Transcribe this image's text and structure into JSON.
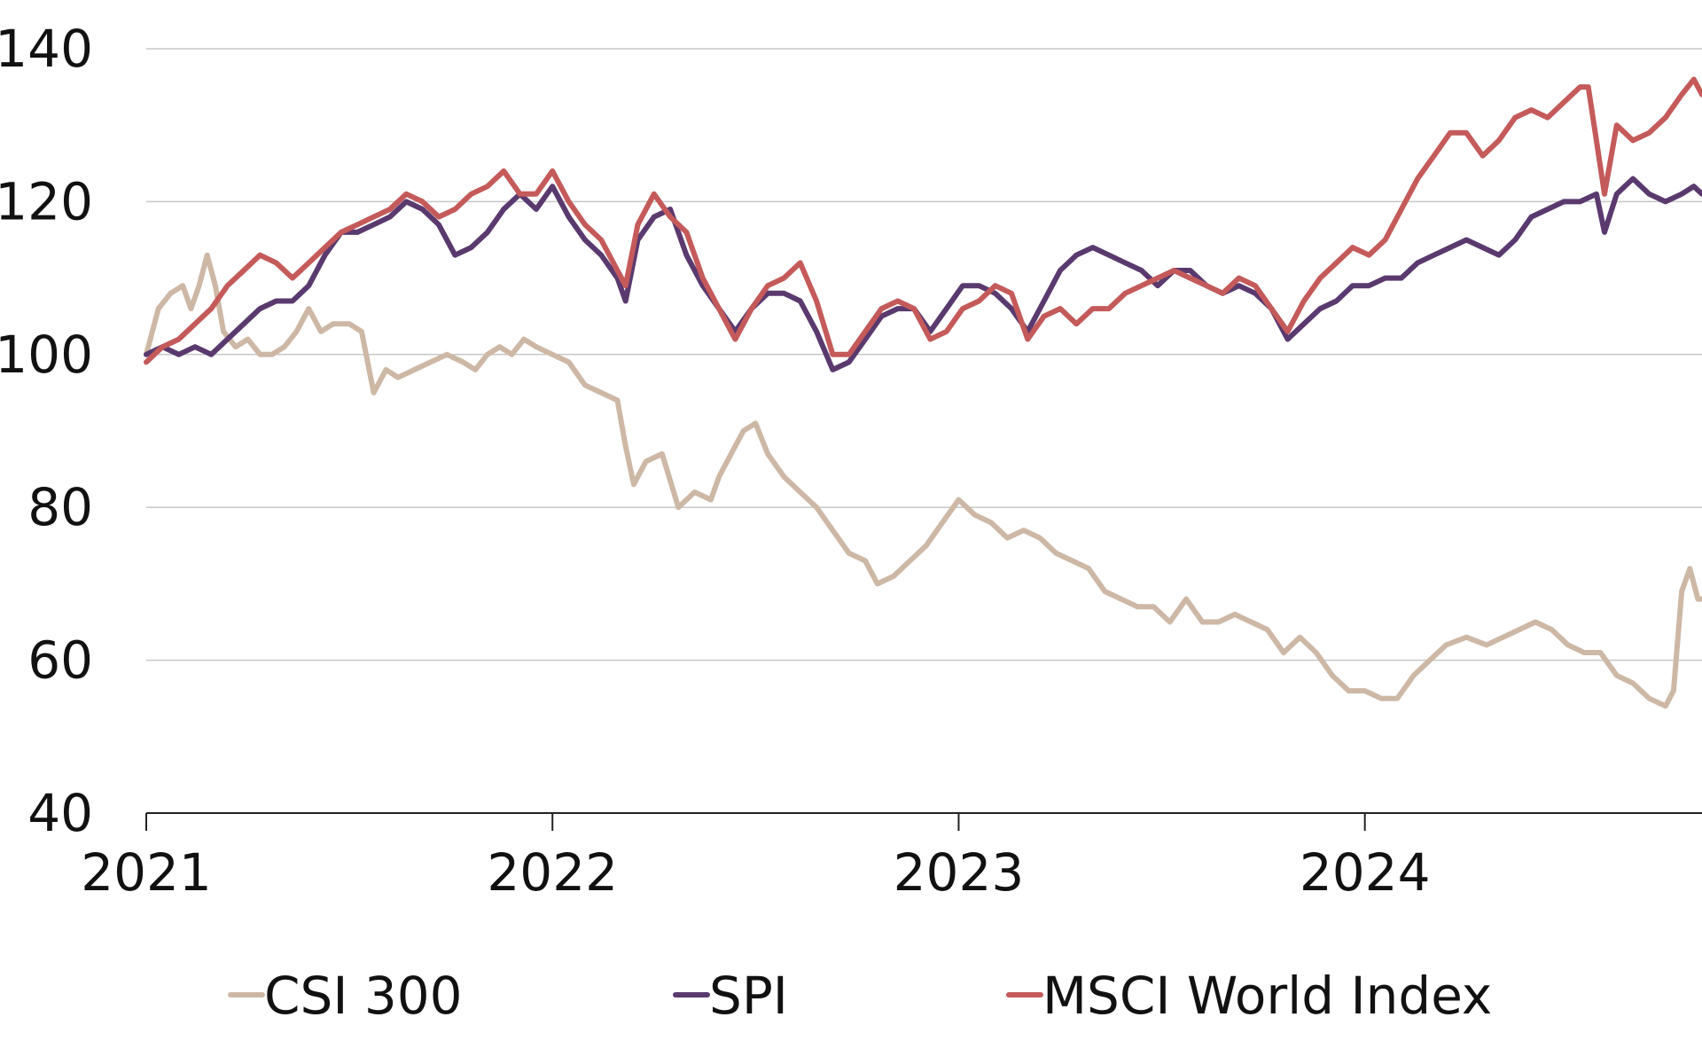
{
  "chart_data": {
    "type": "line",
    "title": "",
    "xlabel": "",
    "ylabel": "",
    "ylim": [
      40,
      140
    ],
    "xlim": [
      2021.0,
      2024.83
    ],
    "yticks": [
      40,
      60,
      80,
      100,
      120,
      140
    ],
    "xticks": [
      2021,
      2022,
      2023,
      2024
    ],
    "ytick_labels": [
      "40",
      "60",
      "80",
      "100",
      "120",
      "140"
    ],
    "xtick_labels": [
      "2021",
      "2022",
      "2023",
      "2024"
    ],
    "grid": true,
    "legend_position": "bottom",
    "series": [
      {
        "name": "CSI 300",
        "color": "#cdb8a5",
        "points": [
          [
            2021.0,
            100
          ],
          [
            2021.03,
            106
          ],
          [
            2021.06,
            108
          ],
          [
            2021.09,
            109
          ],
          [
            2021.11,
            106
          ],
          [
            2021.13,
            109
          ],
          [
            2021.15,
            113
          ],
          [
            2021.17,
            109
          ],
          [
            2021.19,
            103
          ],
          [
            2021.22,
            101
          ],
          [
            2021.25,
            102
          ],
          [
            2021.28,
            100
          ],
          [
            2021.31,
            100
          ],
          [
            2021.34,
            101
          ],
          [
            2021.37,
            103
          ],
          [
            2021.4,
            106
          ],
          [
            2021.43,
            103
          ],
          [
            2021.46,
            104
          ],
          [
            2021.5,
            104
          ],
          [
            2021.53,
            103
          ],
          [
            2021.56,
            95
          ],
          [
            2021.59,
            98
          ],
          [
            2021.62,
            97
          ],
          [
            2021.66,
            98
          ],
          [
            2021.7,
            99
          ],
          [
            2021.74,
            100
          ],
          [
            2021.78,
            99
          ],
          [
            2021.81,
            98
          ],
          [
            2021.84,
            100
          ],
          [
            2021.87,
            101
          ],
          [
            2021.9,
            100
          ],
          [
            2021.93,
            102
          ],
          [
            2021.96,
            101
          ],
          [
            2022.0,
            100
          ],
          [
            2022.04,
            99
          ],
          [
            2022.08,
            96
          ],
          [
            2022.12,
            95
          ],
          [
            2022.16,
            94
          ],
          [
            2022.18,
            88
          ],
          [
            2022.2,
            83
          ],
          [
            2022.23,
            86
          ],
          [
            2022.27,
            87
          ],
          [
            2022.31,
            80
          ],
          [
            2022.35,
            82
          ],
          [
            2022.39,
            81
          ],
          [
            2022.41,
            84
          ],
          [
            2022.44,
            87
          ],
          [
            2022.47,
            90
          ],
          [
            2022.5,
            91
          ],
          [
            2022.53,
            87
          ],
          [
            2022.57,
            84
          ],
          [
            2022.61,
            82
          ],
          [
            2022.65,
            80
          ],
          [
            2022.69,
            77
          ],
          [
            2022.73,
            74
          ],
          [
            2022.77,
            73
          ],
          [
            2022.8,
            70
          ],
          [
            2022.84,
            71
          ],
          [
            2022.88,
            73
          ],
          [
            2022.92,
            75
          ],
          [
            2022.96,
            78
          ],
          [
            2023.0,
            81
          ],
          [
            2023.04,
            79
          ],
          [
            2023.08,
            78
          ],
          [
            2023.12,
            76
          ],
          [
            2023.16,
            77
          ],
          [
            2023.2,
            76
          ],
          [
            2023.24,
            74
          ],
          [
            2023.28,
            73
          ],
          [
            2023.32,
            72
          ],
          [
            2023.36,
            69
          ],
          [
            2023.4,
            68
          ],
          [
            2023.44,
            67
          ],
          [
            2023.48,
            67
          ],
          [
            2023.52,
            65
          ],
          [
            2023.56,
            68
          ],
          [
            2023.6,
            65
          ],
          [
            2023.64,
            65
          ],
          [
            2023.68,
            66
          ],
          [
            2023.72,
            65
          ],
          [
            2023.76,
            64
          ],
          [
            2023.8,
            61
          ],
          [
            2023.84,
            63
          ],
          [
            2023.88,
            61
          ],
          [
            2023.92,
            58
          ],
          [
            2023.96,
            56
          ],
          [
            2024.0,
            56
          ],
          [
            2024.04,
            55
          ],
          [
            2024.08,
            55
          ],
          [
            2024.12,
            58
          ],
          [
            2024.16,
            60
          ],
          [
            2024.2,
            62
          ],
          [
            2024.25,
            63
          ],
          [
            2024.3,
            62
          ],
          [
            2024.34,
            63
          ],
          [
            2024.38,
            64
          ],
          [
            2024.42,
            65
          ],
          [
            2024.46,
            64
          ],
          [
            2024.5,
            62
          ],
          [
            2024.54,
            61
          ],
          [
            2024.58,
            61
          ],
          [
            2024.62,
            58
          ],
          [
            2024.66,
            57
          ],
          [
            2024.7,
            55
          ],
          [
            2024.74,
            54
          ],
          [
            2024.76,
            56
          ],
          [
            2024.78,
            69
          ],
          [
            2024.8,
            72
          ],
          [
            2024.82,
            68
          ],
          [
            2024.83,
            68
          ]
        ]
      },
      {
        "name": "SPI",
        "color": "#5a3a6e",
        "points": [
          [
            2021.0,
            100
          ],
          [
            2021.04,
            101
          ],
          [
            2021.08,
            100
          ],
          [
            2021.12,
            101
          ],
          [
            2021.16,
            100
          ],
          [
            2021.2,
            102
          ],
          [
            2021.24,
            104
          ],
          [
            2021.28,
            106
          ],
          [
            2021.32,
            107
          ],
          [
            2021.36,
            107
          ],
          [
            2021.4,
            109
          ],
          [
            2021.44,
            113
          ],
          [
            2021.48,
            116
          ],
          [
            2021.52,
            116
          ],
          [
            2021.56,
            117
          ],
          [
            2021.6,
            118
          ],
          [
            2021.64,
            120
          ],
          [
            2021.68,
            119
          ],
          [
            2021.72,
            117
          ],
          [
            2021.76,
            113
          ],
          [
            2021.8,
            114
          ],
          [
            2021.84,
            116
          ],
          [
            2021.88,
            119
          ],
          [
            2021.92,
            121
          ],
          [
            2021.96,
            119
          ],
          [
            2022.0,
            122
          ],
          [
            2022.04,
            118
          ],
          [
            2022.08,
            115
          ],
          [
            2022.12,
            113
          ],
          [
            2022.16,
            110
          ],
          [
            2022.18,
            107
          ],
          [
            2022.21,
            115
          ],
          [
            2022.25,
            118
          ],
          [
            2022.29,
            119
          ],
          [
            2022.33,
            113
          ],
          [
            2022.37,
            109
          ],
          [
            2022.41,
            106
          ],
          [
            2022.45,
            103
          ],
          [
            2022.49,
            106
          ],
          [
            2022.53,
            108
          ],
          [
            2022.57,
            108
          ],
          [
            2022.61,
            107
          ],
          [
            2022.65,
            103
          ],
          [
            2022.69,
            98
          ],
          [
            2022.73,
            99
          ],
          [
            2022.77,
            102
          ],
          [
            2022.81,
            105
          ],
          [
            2022.85,
            106
          ],
          [
            2022.89,
            106
          ],
          [
            2022.93,
            103
          ],
          [
            2022.97,
            106
          ],
          [
            2023.01,
            109
          ],
          [
            2023.05,
            109
          ],
          [
            2023.09,
            108
          ],
          [
            2023.13,
            106
          ],
          [
            2023.17,
            103
          ],
          [
            2023.21,
            107
          ],
          [
            2023.25,
            111
          ],
          [
            2023.29,
            113
          ],
          [
            2023.33,
            114
          ],
          [
            2023.37,
            113
          ],
          [
            2023.41,
            112
          ],
          [
            2023.45,
            111
          ],
          [
            2023.49,
            109
          ],
          [
            2023.53,
            111
          ],
          [
            2023.57,
            111
          ],
          [
            2023.61,
            109
          ],
          [
            2023.65,
            108
          ],
          [
            2023.69,
            109
          ],
          [
            2023.73,
            108
          ],
          [
            2023.77,
            106
          ],
          [
            2023.81,
            102
          ],
          [
            2023.85,
            104
          ],
          [
            2023.89,
            106
          ],
          [
            2023.93,
            107
          ],
          [
            2023.97,
            109
          ],
          [
            2024.01,
            109
          ],
          [
            2024.05,
            110
          ],
          [
            2024.09,
            110
          ],
          [
            2024.13,
            112
          ],
          [
            2024.17,
            113
          ],
          [
            2024.21,
            114
          ],
          [
            2024.25,
            115
          ],
          [
            2024.29,
            114
          ],
          [
            2024.33,
            113
          ],
          [
            2024.37,
            115
          ],
          [
            2024.41,
            118
          ],
          [
            2024.45,
            119
          ],
          [
            2024.49,
            120
          ],
          [
            2024.53,
            120
          ],
          [
            2024.57,
            121
          ],
          [
            2024.59,
            116
          ],
          [
            2024.62,
            121
          ],
          [
            2024.66,
            123
          ],
          [
            2024.7,
            121
          ],
          [
            2024.74,
            120
          ],
          [
            2024.78,
            121
          ],
          [
            2024.81,
            122
          ],
          [
            2024.83,
            121
          ]
        ]
      },
      {
        "name": "MSCI World Index",
        "color": "#c45a5a",
        "points": [
          [
            2021.0,
            99
          ],
          [
            2021.04,
            101
          ],
          [
            2021.08,
            102
          ],
          [
            2021.12,
            104
          ],
          [
            2021.16,
            106
          ],
          [
            2021.2,
            109
          ],
          [
            2021.24,
            111
          ],
          [
            2021.28,
            113
          ],
          [
            2021.32,
            112
          ],
          [
            2021.36,
            110
          ],
          [
            2021.4,
            112
          ],
          [
            2021.44,
            114
          ],
          [
            2021.48,
            116
          ],
          [
            2021.52,
            117
          ],
          [
            2021.56,
            118
          ],
          [
            2021.6,
            119
          ],
          [
            2021.64,
            121
          ],
          [
            2021.68,
            120
          ],
          [
            2021.72,
            118
          ],
          [
            2021.76,
            119
          ],
          [
            2021.8,
            121
          ],
          [
            2021.84,
            122
          ],
          [
            2021.88,
            124
          ],
          [
            2021.92,
            121
          ],
          [
            2021.96,
            121
          ],
          [
            2022.0,
            124
          ],
          [
            2022.04,
            120
          ],
          [
            2022.08,
            117
          ],
          [
            2022.12,
            115
          ],
          [
            2022.16,
            111
          ],
          [
            2022.18,
            109
          ],
          [
            2022.21,
            117
          ],
          [
            2022.25,
            121
          ],
          [
            2022.29,
            118
          ],
          [
            2022.33,
            116
          ],
          [
            2022.37,
            110
          ],
          [
            2022.41,
            106
          ],
          [
            2022.45,
            102
          ],
          [
            2022.49,
            106
          ],
          [
            2022.53,
            109
          ],
          [
            2022.57,
            110
          ],
          [
            2022.61,
            112
          ],
          [
            2022.65,
            107
          ],
          [
            2022.69,
            100
          ],
          [
            2022.73,
            100
          ],
          [
            2022.77,
            103
          ],
          [
            2022.81,
            106
          ],
          [
            2022.85,
            107
          ],
          [
            2022.89,
            106
          ],
          [
            2022.93,
            102
          ],
          [
            2022.97,
            103
          ],
          [
            2023.01,
            106
          ],
          [
            2023.05,
            107
          ],
          [
            2023.09,
            109
          ],
          [
            2023.13,
            108
          ],
          [
            2023.17,
            102
          ],
          [
            2023.21,
            105
          ],
          [
            2023.25,
            106
          ],
          [
            2023.29,
            104
          ],
          [
            2023.33,
            106
          ],
          [
            2023.37,
            106
          ],
          [
            2023.41,
            108
          ],
          [
            2023.45,
            109
          ],
          [
            2023.49,
            110
          ],
          [
            2023.53,
            111
          ],
          [
            2023.57,
            110
          ],
          [
            2023.61,
            109
          ],
          [
            2023.65,
            108
          ],
          [
            2023.69,
            110
          ],
          [
            2023.73,
            109
          ],
          [
            2023.77,
            106
          ],
          [
            2023.81,
            103
          ],
          [
            2023.85,
            107
          ],
          [
            2023.89,
            110
          ],
          [
            2023.93,
            112
          ],
          [
            2023.97,
            114
          ],
          [
            2024.01,
            113
          ],
          [
            2024.05,
            115
          ],
          [
            2024.09,
            119
          ],
          [
            2024.13,
            123
          ],
          [
            2024.17,
            126
          ],
          [
            2024.21,
            129
          ],
          [
            2024.25,
            129
          ],
          [
            2024.29,
            126
          ],
          [
            2024.33,
            128
          ],
          [
            2024.37,
            131
          ],
          [
            2024.41,
            132
          ],
          [
            2024.45,
            131
          ],
          [
            2024.49,
            133
          ],
          [
            2024.53,
            135
          ],
          [
            2024.55,
            135
          ],
          [
            2024.57,
            128
          ],
          [
            2024.59,
            121
          ],
          [
            2024.62,
            130
          ],
          [
            2024.66,
            128
          ],
          [
            2024.7,
            129
          ],
          [
            2024.74,
            131
          ],
          [
            2024.78,
            134
          ],
          [
            2024.81,
            136
          ],
          [
            2024.83,
            134
          ]
        ]
      }
    ]
  }
}
